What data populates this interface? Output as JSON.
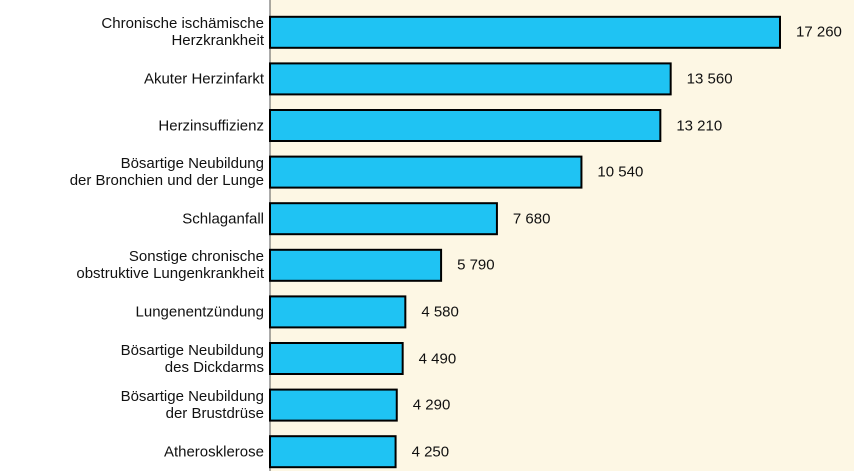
{
  "chart_data": {
    "type": "bar",
    "orientation": "horizontal",
    "categories": [
      "Chronische ischämische\nHerzkrankheit",
      "Akuter Herzinfarkt",
      "Herzinsuffizienz",
      "Bösartige Neubildung\nder Bronchien und der Lunge",
      "Schlaganfall",
      "Sonstige chronische\nobstruktive Lungenkrankheit",
      "Lungenentzündung",
      "Bösartige Neubildung\ndes Dickdarms",
      "Bösartige Neubildung\nder Brustdrüse",
      "Atherosklerose"
    ],
    "values": [
      17260,
      13560,
      13210,
      10540,
      7680,
      5790,
      4580,
      4490,
      4290,
      4250
    ],
    "value_labels": [
      "17 260",
      "13 560",
      "13 210",
      "10 540",
      "7 680",
      "5 790",
      "4 580",
      "4 490",
      "4 290",
      "4 250"
    ],
    "color": "#1fc3f3"
  }
}
